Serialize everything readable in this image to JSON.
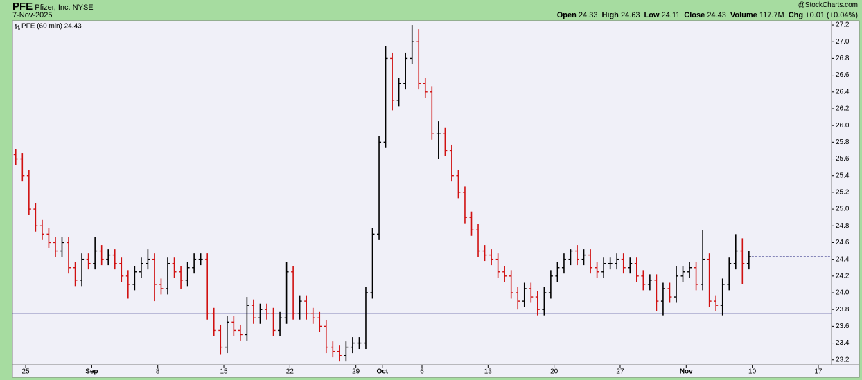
{
  "header": {
    "symbol": "PFE",
    "name": "Pfizer, Inc.",
    "exchange": "NYSE",
    "date": "7-Nov-2025",
    "source": "@StockCharts.com",
    "stats": [
      {
        "label": "Open",
        "value": 24.33
      },
      {
        "label": "High",
        "value": 24.63
      },
      {
        "label": "Low",
        "value": 24.11
      },
      {
        "label": "Close",
        "value": 24.43
      },
      {
        "label": "Volume",
        "value": "117.7M"
      },
      {
        "label": "Chg",
        "value": "+0.01 (+0.04%)"
      }
    ]
  },
  "chart_data": {
    "type": "ohlc",
    "legend": "PFE (60 min) 24.43",
    "up_color": "#000000",
    "down_color": "#d01010",
    "hline_color": "#1a1a7a",
    "hlines": [
      24.5,
      23.75
    ],
    "x": [
      -0.75,
      -0.25,
      0.25,
      0.75,
      1.25,
      1.75,
      2.25,
      2.75,
      3.25,
      3.75,
      4.25,
      4.75,
      5.25,
      5.75,
      6.25,
      6.75,
      7.25,
      7.75,
      8.25,
      8.75,
      9.25,
      9.75,
      10.25,
      10.75,
      11.25,
      11.75,
      12.25,
      12.75,
      13.25,
      13.75,
      14.25,
      14.75,
      15.25,
      15.75,
      16.25,
      16.75,
      17.25,
      17.75,
      18.25,
      18.75,
      19.25,
      19.75,
      20.25,
      20.75,
      21.25,
      21.75,
      22.25,
      22.75,
      23.25,
      23.75,
      24.25,
      24.75,
      25.25,
      25.75,
      26.25,
      26.75,
      27.25,
      27.75,
      28.25,
      28.75,
      29.25,
      29.75,
      30.25,
      30.75,
      31.25,
      31.75,
      32.25,
      32.75,
      33.25,
      33.75,
      34.25,
      34.75,
      35.25,
      35.75,
      36.25,
      36.75,
      37.25,
      37.75,
      38.25,
      38.75,
      39.25,
      39.75,
      40.25,
      40.75,
      41.25,
      41.75,
      42.25,
      42.75,
      43.25,
      43.75,
      44.25,
      44.75,
      45.25,
      45.75,
      46.25,
      46.75,
      47.25,
      47.75,
      48.25,
      48.75,
      49.25,
      49.75,
      50.25,
      50.75,
      51.25,
      51.75,
      52.25,
      52.75,
      53.25,
      53.75,
      54.25,
      54.75
    ],
    "open": [
      25.65,
      25.6,
      25.4,
      25.0,
      24.8,
      24.7,
      24.6,
      24.5,
      24.6,
      24.3,
      24.15,
      24.4,
      24.35,
      24.5,
      24.4,
      24.45,
      24.35,
      24.2,
      24.1,
      24.25,
      24.35,
      24.4,
      24.1,
      24.05,
      24.35,
      24.25,
      24.15,
      24.3,
      24.4,
      24.4,
      23.75,
      23.55,
      23.35,
      23.65,
      23.55,
      23.5,
      23.85,
      23.7,
      23.8,
      23.75,
      23.55,
      23.7,
      24.25,
      23.75,
      23.9,
      23.75,
      23.7,
      23.6,
      23.35,
      23.3,
      23.25,
      23.35,
      23.4,
      23.4,
      24.0,
      24.7,
      25.8,
      26.8,
      26.3,
      26.5,
      26.8,
      27.0,
      26.5,
      26.4,
      25.9,
      25.9,
      25.7,
      25.4,
      25.2,
      24.9,
      24.75,
      24.5,
      24.45,
      24.4,
      24.25,
      24.2,
      24.0,
      23.9,
      24.05,
      23.95,
      23.8,
      24.0,
      24.2,
      24.3,
      24.4,
      24.5,
      24.4,
      24.45,
      24.3,
      24.25,
      24.35,
      24.35,
      24.4,
      24.3,
      24.35,
      24.2,
      24.1,
      24.15,
      23.9,
      24.05,
      23.95,
      24.2,
      24.25,
      24.3,
      24.1,
      24.4,
      23.9,
      23.85,
      24.1,
      24.35,
      24.5,
      24.35
    ],
    "high": [
      25.72,
      25.67,
      25.47,
      25.07,
      24.87,
      24.77,
      24.67,
      24.67,
      24.67,
      24.37,
      24.47,
      24.47,
      24.67,
      24.57,
      24.52,
      24.52,
      24.42,
      24.27,
      24.32,
      24.42,
      24.52,
      24.47,
      24.17,
      24.42,
      24.42,
      24.32,
      24.37,
      24.47,
      24.47,
      24.47,
      23.82,
      23.62,
      23.72,
      23.72,
      23.62,
      23.95,
      23.92,
      23.87,
      23.87,
      23.82,
      23.77,
      24.37,
      24.32,
      23.97,
      23.97,
      23.82,
      23.77,
      23.67,
      23.42,
      23.37,
      23.42,
      23.47,
      23.47,
      24.07,
      24.77,
      25.87,
      26.95,
      26.87,
      26.57,
      26.87,
      27.2,
      27.15,
      26.57,
      26.47,
      26.05,
      25.97,
      25.77,
      25.47,
      25.27,
      24.97,
      24.82,
      24.57,
      24.52,
      24.47,
      24.32,
      24.27,
      24.07,
      24.12,
      24.12,
      24.02,
      24.07,
      24.27,
      24.37,
      24.47,
      24.52,
      24.57,
      24.52,
      24.52,
      24.37,
      24.42,
      24.42,
      24.47,
      24.47,
      24.42,
      24.42,
      24.27,
      24.22,
      24.22,
      24.12,
      24.12,
      24.32,
      24.32,
      24.37,
      24.37,
      24.75,
      24.47,
      23.97,
      24.17,
      24.42,
      24.7,
      24.65,
      24.5
    ],
    "low": [
      25.53,
      25.33,
      24.93,
      24.73,
      24.63,
      24.53,
      24.43,
      24.43,
      24.23,
      24.08,
      24.08,
      24.28,
      24.28,
      24.33,
      24.33,
      24.28,
      24.13,
      23.93,
      24.03,
      24.18,
      24.28,
      23.9,
      23.98,
      23.98,
      24.18,
      24.05,
      24.08,
      24.23,
      24.33,
      23.68,
      23.48,
      23.26,
      23.28,
      23.48,
      23.43,
      23.43,
      23.63,
      23.63,
      23.68,
      23.48,
      23.48,
      23.63,
      23.68,
      23.68,
      23.68,
      23.63,
      23.53,
      23.28,
      23.23,
      23.18,
      23.18,
      23.28,
      23.33,
      23.33,
      23.93,
      24.63,
      25.73,
      26.18,
      26.23,
      26.43,
      26.73,
      26.43,
      26.33,
      25.83,
      25.6,
      25.63,
      25.33,
      25.13,
      24.83,
      24.68,
      24.43,
      24.38,
      24.33,
      24.18,
      24.13,
      23.93,
      23.8,
      23.83,
      23.88,
      23.73,
      23.73,
      23.93,
      24.13,
      24.23,
      24.33,
      24.33,
      24.33,
      24.23,
      24.18,
      24.18,
      24.28,
      24.28,
      24.23,
      24.23,
      24.13,
      24.03,
      24.03,
      23.78,
      23.73,
      23.88,
      23.88,
      24.13,
      24.18,
      24.03,
      24.03,
      23.83,
      23.78,
      23.73,
      24.03,
      24.28,
      24.1,
      24.28
    ],
    "close": [
      25.6,
      25.4,
      25.0,
      24.8,
      24.7,
      24.6,
      24.5,
      24.6,
      24.3,
      24.15,
      24.4,
      24.35,
      24.5,
      24.4,
      24.45,
      24.35,
      24.2,
      24.1,
      24.25,
      24.35,
      24.4,
      24.1,
      24.05,
      24.35,
      24.25,
      24.15,
      24.3,
      24.4,
      24.4,
      23.75,
      23.55,
      23.35,
      23.65,
      23.55,
      23.5,
      23.85,
      23.7,
      23.8,
      23.75,
      23.55,
      23.7,
      24.25,
      23.75,
      23.9,
      23.75,
      23.7,
      23.6,
      23.35,
      23.3,
      23.25,
      23.35,
      23.4,
      23.4,
      24.0,
      24.7,
      25.8,
      26.8,
      26.3,
      26.5,
      26.8,
      27.0,
      26.5,
      26.4,
      25.9,
      25.9,
      25.7,
      25.4,
      25.2,
      24.9,
      24.75,
      24.5,
      24.45,
      24.4,
      24.25,
      24.2,
      24.0,
      23.9,
      24.05,
      23.95,
      23.8,
      24.0,
      24.2,
      24.3,
      24.4,
      24.5,
      24.4,
      24.45,
      24.3,
      24.25,
      24.35,
      24.35,
      24.4,
      24.3,
      24.35,
      24.2,
      24.1,
      24.15,
      23.9,
      24.05,
      23.95,
      24.2,
      24.25,
      24.3,
      24.1,
      24.4,
      23.9,
      23.85,
      24.1,
      24.35,
      24.5,
      24.35,
      24.43
    ],
    "xlim": [
      -1,
      61
    ],
    "xticks": [
      {
        "value": 0,
        "label": "25"
      },
      {
        "value": 5,
        "label": "Sep"
      },
      {
        "value": 10,
        "label": "8"
      },
      {
        "value": 15,
        "label": "15"
      },
      {
        "value": 20,
        "label": "22"
      },
      {
        "value": 25,
        "label": "29"
      },
      {
        "value": 27,
        "label": "Oct"
      },
      {
        "value": 30,
        "label": "6"
      },
      {
        "value": 35,
        "label": "13"
      },
      {
        "value": 40,
        "label": "20"
      },
      {
        "value": 45,
        "label": "27"
      },
      {
        "value": 50,
        "label": "Nov"
      },
      {
        "value": 55,
        "label": "10"
      },
      {
        "value": 60,
        "label": "17"
      }
    ],
    "ylim": [
      23.14,
      27.25
    ],
    "yticks": [
      23.2,
      23.4,
      23.6,
      23.8,
      {
        "value": 24,
        "label": "24.0"
      },
      24.2,
      24.4,
      24.6,
      24.8,
      {
        "value": 25,
        "label": "25.0"
      },
      25.2,
      25.4,
      25.6,
      25.8,
      {
        "value": 26,
        "label": "26.0"
      },
      26.2,
      26.4,
      26.6,
      26.8,
      {
        "value": 27,
        "label": "27.0"
      },
      27.2
    ]
  }
}
